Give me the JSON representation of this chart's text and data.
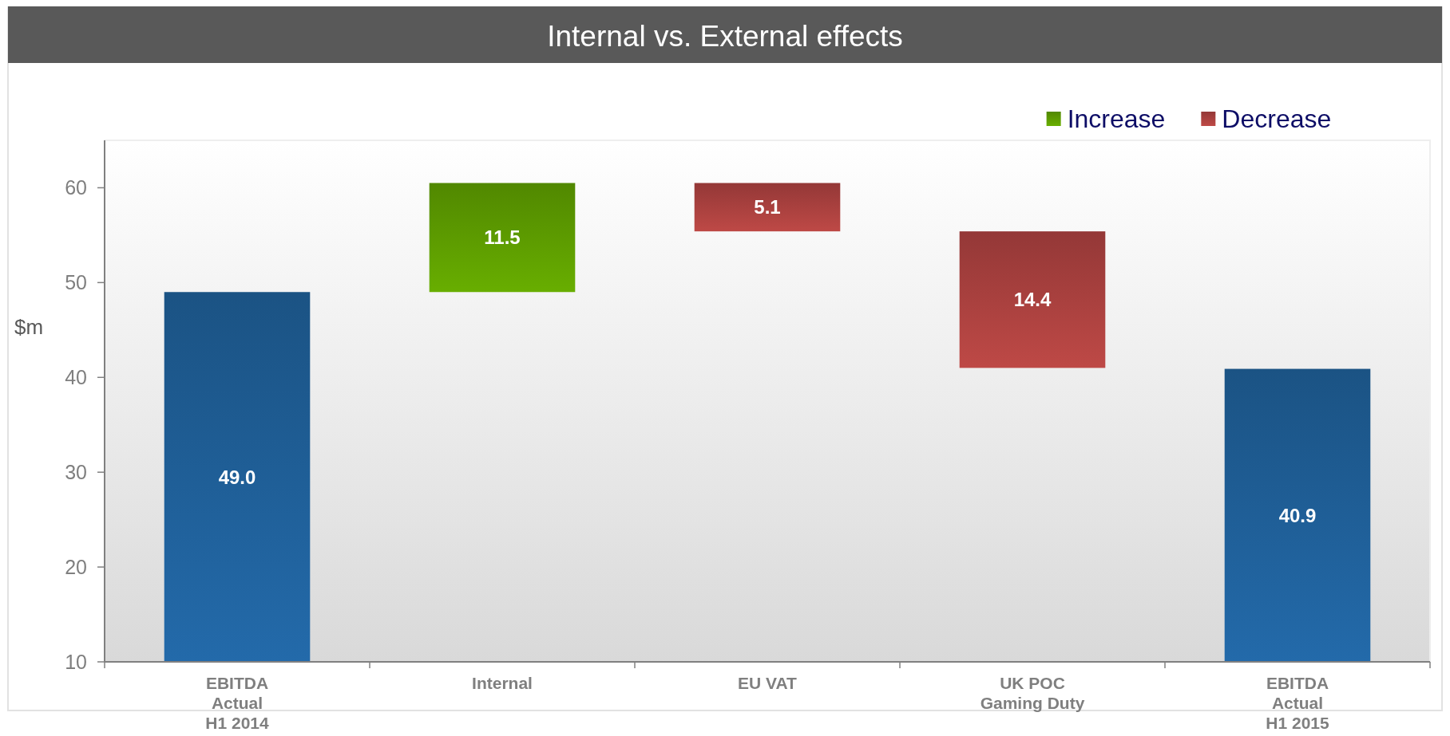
{
  "chart_data": {
    "type": "bar",
    "title": "Internal vs. External effects",
    "ylabel": "$m",
    "categories": [
      "EBITDA\nActual\nH1 2014",
      "Internal",
      "EU VAT",
      "UK POC\nGaming Duty",
      "EBITDA\nActual\nH1 2015"
    ],
    "series": [
      {
        "color": "#1f5e96",
        "values": [
          49.0,
          null,
          null,
          null,
          40.9
        ],
        "value_labels": [
          "49.0",
          null,
          null,
          null,
          "40.9"
        ]
      },
      {
        "name": "Increase",
        "color": "#5c9a00",
        "values": [
          null,
          11.5,
          null,
          null,
          null
        ],
        "base": [
          null,
          49.0,
          null,
          null,
          null
        ],
        "value_labels": [
          null,
          "11.5",
          null,
          null,
          null
        ]
      },
      {
        "name": "Decrease",
        "color": "#a8403e",
        "values": [
          null,
          null,
          5.1,
          14.4,
          null
        ],
        "base": [
          null,
          null,
          55.4,
          41.0,
          null
        ],
        "value_labels": [
          null,
          null,
          "5.1",
          "14.4",
          null
        ]
      }
    ],
    "ylim": [
      10,
      65
    ],
    "yticks": [
      10,
      20,
      30,
      40,
      50,
      60
    ],
    "legend": "top right"
  }
}
